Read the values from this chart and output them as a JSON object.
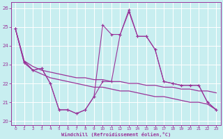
{
  "xlabel": "Windchill (Refroidissement éolien,°C)",
  "background_color": "#c8eef0",
  "line_color": "#993399",
  "grid_color": "#ffffff",
  "xlim": [
    -0.5,
    23.5
  ],
  "ylim": [
    19.8,
    26.3
  ],
  "xticks": [
    0,
    1,
    2,
    3,
    4,
    5,
    6,
    7,
    8,
    9,
    10,
    11,
    12,
    13,
    14,
    15,
    16,
    17,
    18,
    19,
    20,
    21,
    22,
    23
  ],
  "yticks": [
    20,
    21,
    22,
    23,
    24,
    25,
    26
  ],
  "x": [
    0,
    1,
    2,
    3,
    4,
    5,
    6,
    7,
    8,
    9,
    10,
    11,
    12,
    13,
    14,
    15,
    16,
    17,
    18,
    19,
    20,
    21,
    22,
    23
  ],
  "y_upper": [
    24.9,
    23.1,
    22.7,
    22.8,
    22.0,
    20.6,
    20.6,
    20.4,
    20.6,
    21.3,
    25.1,
    24.6,
    24.6,
    25.9,
    24.5,
    24.5,
    23.8,
    22.1,
    22.0,
    21.9,
    21.9,
    21.9,
    21.0,
    20.6
  ],
  "y_lower": [
    24.9,
    23.1,
    22.7,
    22.8,
    22.0,
    20.6,
    20.6,
    20.4,
    20.6,
    21.3,
    22.1,
    22.1,
    24.6,
    25.8,
    24.5,
    24.5,
    23.8,
    22.1,
    22.0,
    21.9,
    21.9,
    21.9,
    21.0,
    20.6
  ],
  "y_trend1": [
    24.9,
    23.2,
    22.9,
    22.7,
    22.6,
    22.5,
    22.4,
    22.3,
    22.3,
    22.2,
    22.2,
    22.1,
    22.1,
    22.0,
    22.0,
    21.9,
    21.9,
    21.8,
    21.8,
    21.7,
    21.7,
    21.6,
    21.6,
    21.5
  ],
  "y_trend2": [
    24.9,
    23.2,
    22.7,
    22.5,
    22.3,
    22.2,
    22.1,
    22.0,
    21.9,
    21.8,
    21.8,
    21.7,
    21.6,
    21.6,
    21.5,
    21.4,
    21.3,
    21.3,
    21.2,
    21.1,
    21.0,
    21.0,
    20.9,
    20.6
  ]
}
